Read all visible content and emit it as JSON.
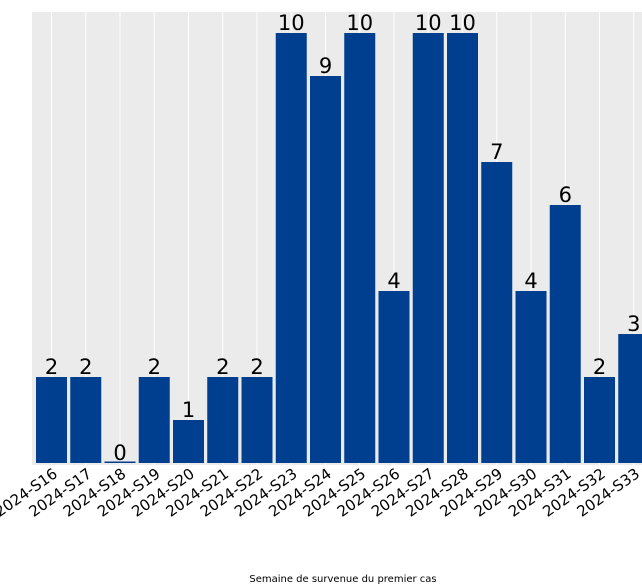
{
  "chart_data": {
    "type": "bar",
    "categories": [
      "2024-S16",
      "2024-S17",
      "2024-S18",
      "2024-S19",
      "2024-S20",
      "2024-S21",
      "2024-S22",
      "2024-S23",
      "2024-S24",
      "2024-S25",
      "2024-S26",
      "2024-S27",
      "2024-S28",
      "2024-S29",
      "2024-S30",
      "2024-S31",
      "2024-S32",
      "2024-S33"
    ],
    "values": [
      2,
      2,
      0,
      2,
      1,
      2,
      2,
      10,
      9,
      10,
      4,
      10,
      10,
      7,
      4,
      6,
      2,
      3
    ],
    "title": "",
    "xlabel": "Semaine de survenue du premier cas",
    "ylabel": "",
    "ylim": [
      0,
      10.5
    ],
    "grid": true,
    "bar_color": "#003f8f",
    "background_color": "#ebebeb",
    "grid_color": "#ffffff",
    "data_labels": true
  }
}
